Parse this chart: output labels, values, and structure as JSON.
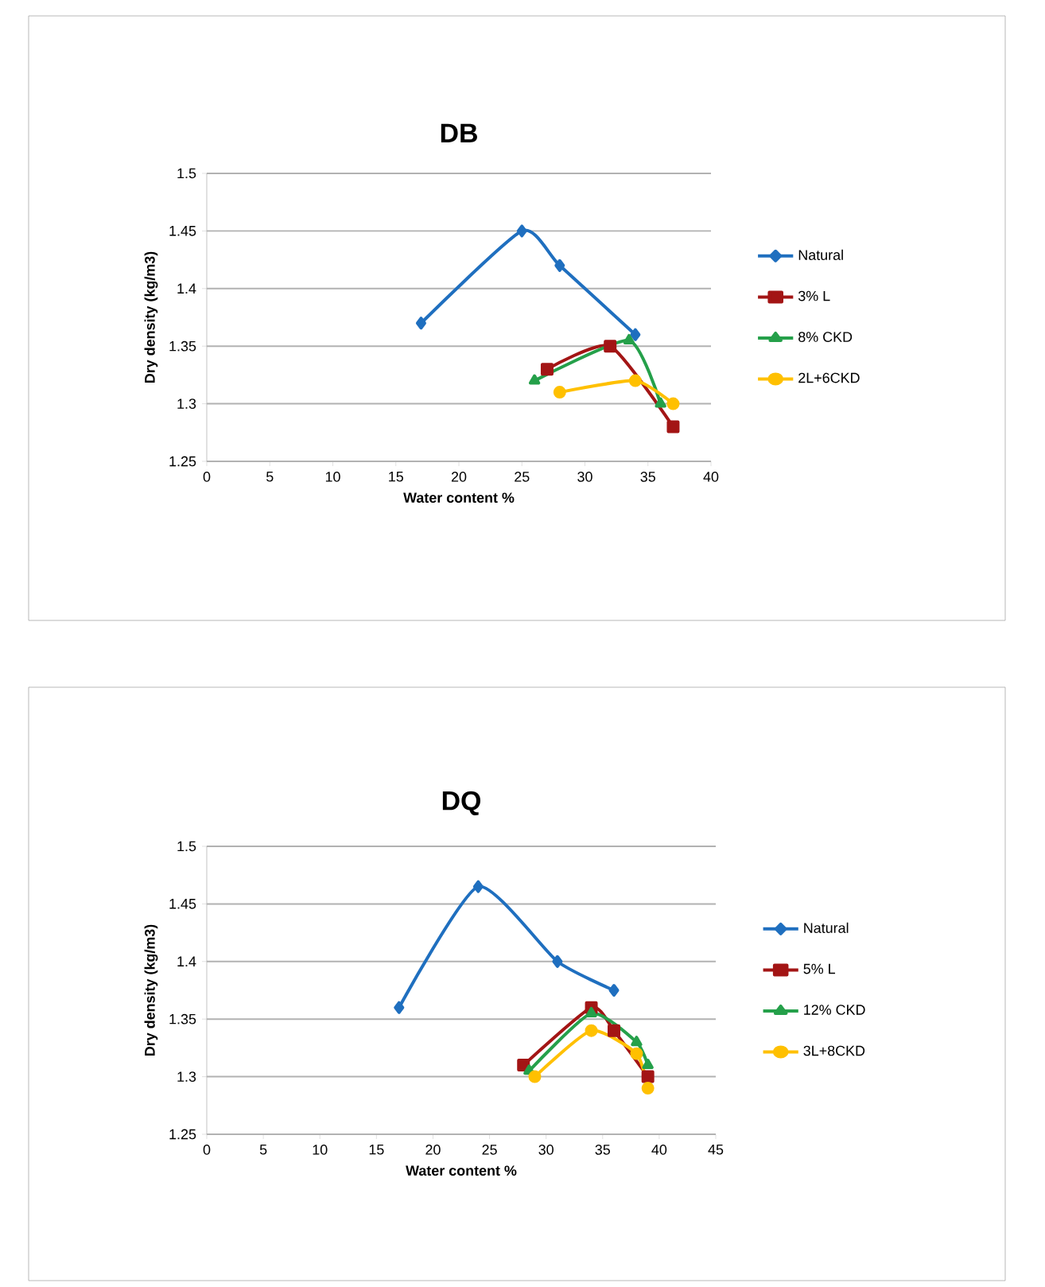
{
  "chart_data": [
    {
      "type": "line",
      "title": "DB",
      "xlabel": "Water content  %",
      "ylabel": "Dry density  (kg/m3)",
      "xlim": [
        0,
        40
      ],
      "xticks": [
        0,
        5,
        10,
        15,
        20,
        25,
        30,
        35,
        40
      ],
      "ylim": [
        1.25,
        1.5
      ],
      "yticks": [
        1.25,
        1.3,
        1.35,
        1.4,
        1.45,
        1.5
      ],
      "grid": "y",
      "legend": "right",
      "series": [
        {
          "name": "Natural",
          "color": "#1f6fbf",
          "marker": "diamond",
          "x": [
            17,
            25,
            28,
            34
          ],
          "values": [
            1.37,
            1.45,
            1.42,
            1.36
          ]
        },
        {
          "name": "3% L",
          "color": "#a31515",
          "marker": "square",
          "x": [
            27,
            32,
            37
          ],
          "values": [
            1.33,
            1.35,
            1.28
          ]
        },
        {
          "name": "8% CKD",
          "color": "#25a04a",
          "marker": "triangle",
          "x": [
            26,
            33.5,
            36
          ],
          "values": [
            1.32,
            1.355,
            1.3
          ]
        },
        {
          "name": "2L+6CKD",
          "color": "#ffc000",
          "marker": "circle",
          "x": [
            28,
            34,
            37
          ],
          "values": [
            1.31,
            1.32,
            1.3
          ]
        }
      ]
    },
    {
      "type": "line",
      "title": "DQ",
      "xlabel": "Water content  %",
      "ylabel": "Dry density  (kg/m3)",
      "xlim": [
        0,
        45
      ],
      "xticks": [
        0,
        5,
        10,
        15,
        20,
        25,
        30,
        35,
        40,
        45
      ],
      "ylim": [
        1.25,
        1.5
      ],
      "yticks": [
        1.25,
        1.3,
        1.35,
        1.4,
        1.45,
        1.5
      ],
      "grid": "y",
      "legend": "right",
      "series": [
        {
          "name": "Natural",
          "color": "#1f6fbf",
          "marker": "diamond",
          "x": [
            17,
            24,
            31,
            36
          ],
          "values": [
            1.36,
            1.465,
            1.4,
            1.375
          ]
        },
        {
          "name": "5% L",
          "color": "#a31515",
          "marker": "square",
          "x": [
            28,
            34,
            36,
            39
          ],
          "values": [
            1.31,
            1.36,
            1.34,
            1.3
          ]
        },
        {
          "name": "12% CKD",
          "color": "#25a04a",
          "marker": "triangle",
          "x": [
            28.5,
            34,
            38,
            39
          ],
          "values": [
            1.305,
            1.355,
            1.33,
            1.31
          ]
        },
        {
          "name": "3L+8CKD",
          "color": "#ffc000",
          "marker": "circle",
          "x": [
            29,
            34,
            38,
            39
          ],
          "values": [
            1.3,
            1.34,
            1.32,
            1.29
          ]
        }
      ]
    }
  ]
}
